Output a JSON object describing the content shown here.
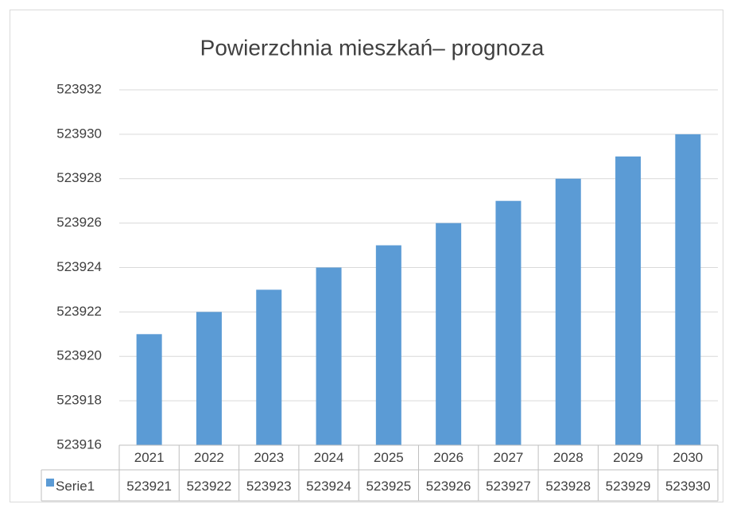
{
  "chart_data": {
    "type": "bar",
    "title": "Powierzchnia mieszkań– prognoza",
    "categories": [
      "2021",
      "2022",
      "2023",
      "2024",
      "2025",
      "2026",
      "2027",
      "2028",
      "2029",
      "2030"
    ],
    "series": [
      {
        "name": "Serie1",
        "color": "#5b9bd5",
        "values": [
          523921,
          523922,
          523923,
          523924,
          523925,
          523926,
          523927,
          523928,
          523929,
          523930
        ]
      }
    ],
    "ylim": [
      523916,
      523932
    ],
    "yticks": [
      523916,
      523918,
      523920,
      523922,
      523924,
      523926,
      523928,
      523930,
      523932
    ],
    "grid": true,
    "data_table": true
  }
}
